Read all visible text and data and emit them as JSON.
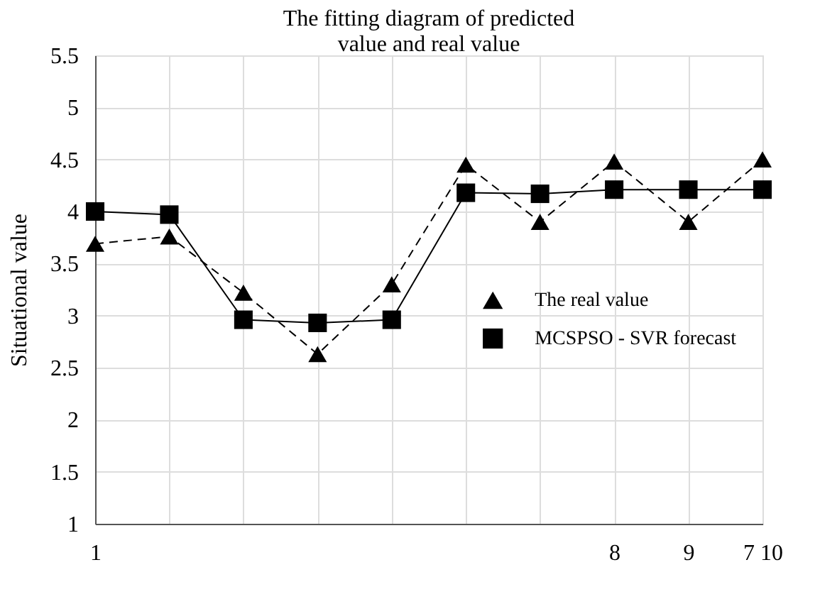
{
  "chart_data": {
    "type": "line",
    "title": [
      "The fitting diagram of predicted",
      "value and real value"
    ],
    "ylabel": "Situational value",
    "categories": [
      "1",
      null,
      null,
      null,
      null,
      null,
      null,
      "8",
      "9",
      "7 10"
    ],
    "series": [
      {
        "name": "The real value",
        "color": "#000000",
        "marker": "triangle",
        "line_style": "dashed",
        "values": [
          3.69,
          3.76,
          3.22,
          2.63,
          3.3,
          4.45,
          3.9,
          4.48,
          3.9,
          4.5
        ]
      },
      {
        "name": "MCSPSO - SVR forecast",
        "color": "#000000",
        "marker": "square",
        "line_style": "solid",
        "values": [
          4.0,
          3.97,
          2.96,
          2.93,
          2.96,
          4.18,
          4.17,
          4.21,
          4.21,
          4.21
        ]
      }
    ],
    "ylim": [
      1,
      5.5
    ],
    "yticks": [
      1,
      1.5,
      2,
      2.5,
      3,
      3.5,
      4,
      4.5,
      5,
      5.5
    ],
    "grid": true,
    "legend": "right"
  }
}
